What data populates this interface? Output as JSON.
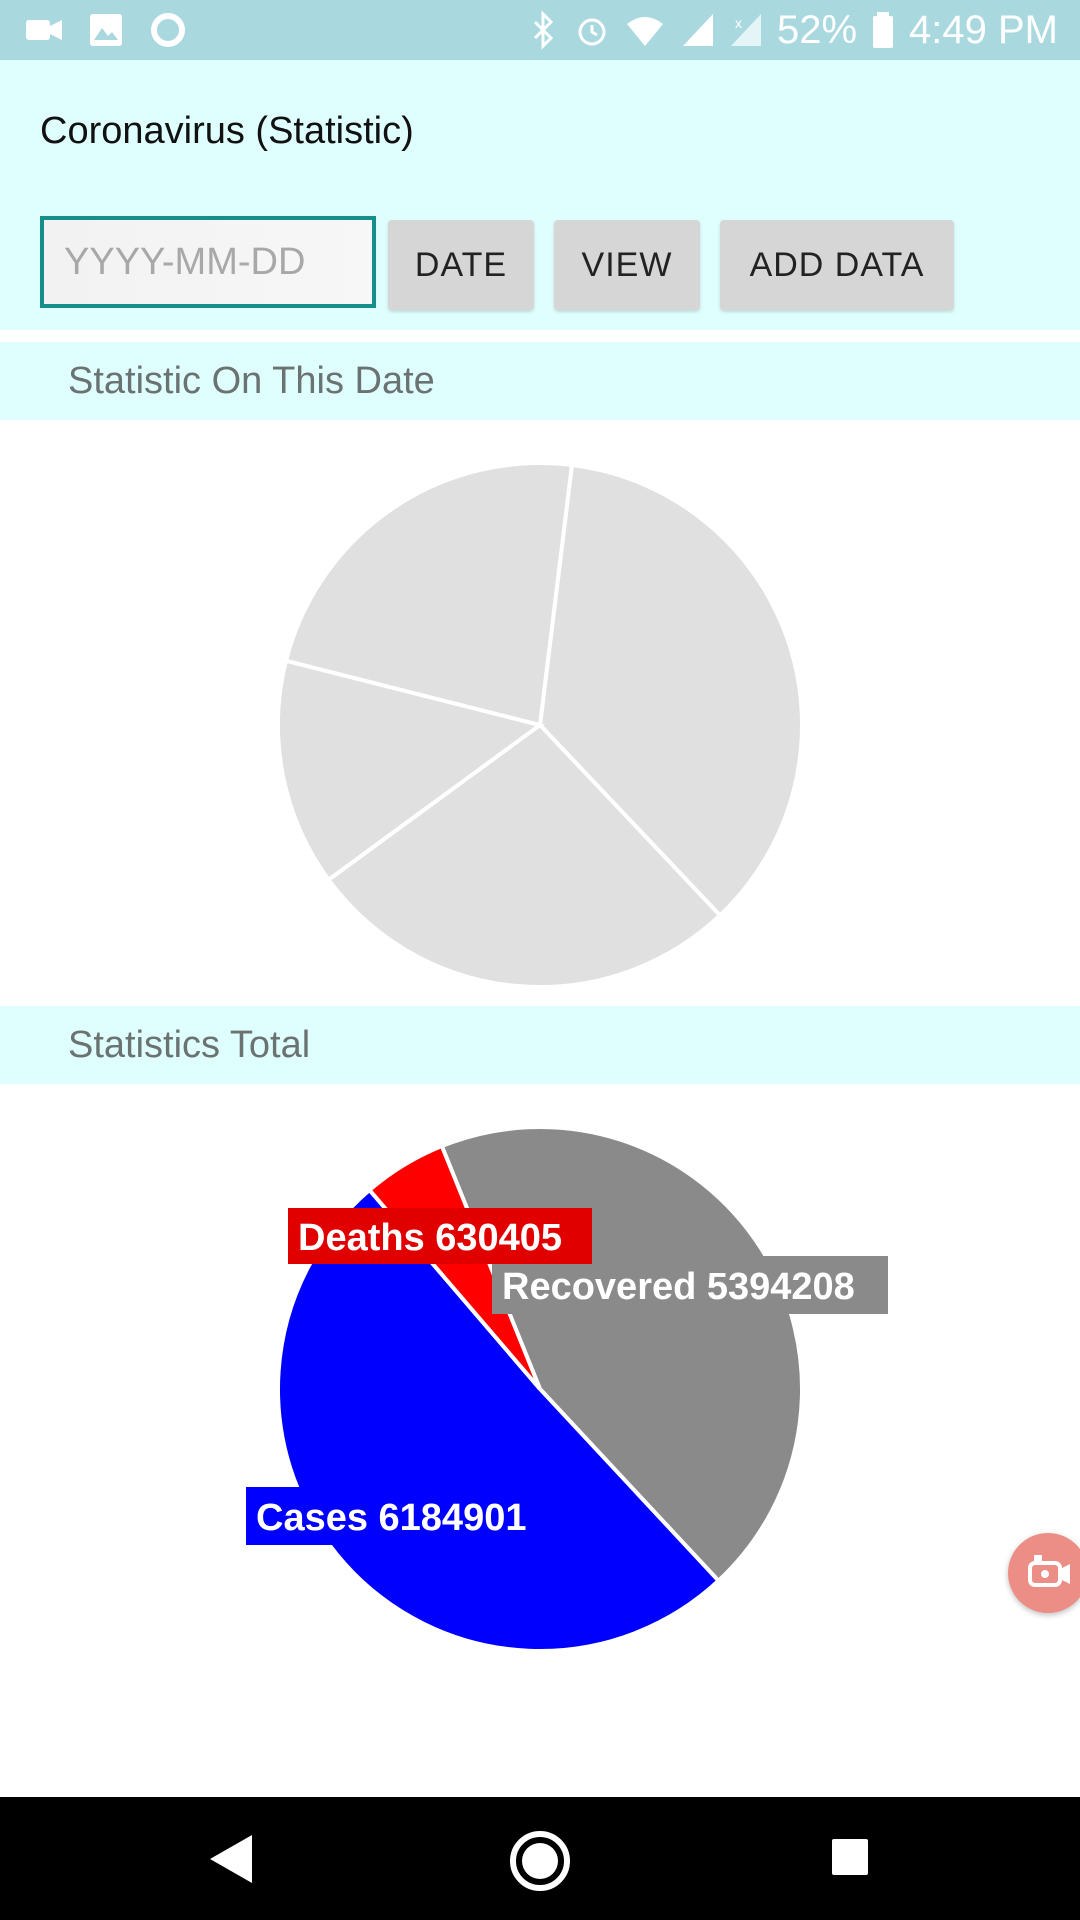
{
  "status_bar": {
    "battery": "52%",
    "time": "4:49 PM",
    "icons": [
      "video-icon",
      "image-icon",
      "circle-icon",
      "bluetooth-icon",
      "alarm-icon",
      "wifi-icon",
      "signal-icon",
      "signal-x-icon",
      "battery-icon"
    ]
  },
  "header": {
    "title": "Coronavirus (Statistic)",
    "date_input": {
      "value": "",
      "placeholder": "YYYY-MM-DD"
    },
    "buttons": {
      "date": "DATE",
      "view": "VIEW",
      "add_data": "ADD DATA"
    }
  },
  "sections": {
    "on_date": "Statistic On This Date",
    "total": "Statistics Total"
  },
  "chart_data": [
    {
      "type": "pie",
      "title": "",
      "slices": [
        {
          "label": "",
          "value": 36,
          "color": "#e0e0e0"
        },
        {
          "label": "",
          "value": 27,
          "color": "#e0e0e0"
        },
        {
          "label": "",
          "value": 14,
          "color": "#e0e0e0"
        },
        {
          "label": "",
          "value": 23,
          "color": "#e0e0e0"
        }
      ],
      "note_empty": ""
    },
    {
      "type": "pie",
      "title": "",
      "slices": [
        {
          "label": "Recovered",
          "value": 5394208,
          "color": "#8a8a8a"
        },
        {
          "label": "Cases",
          "value": 6184901,
          "color": "#0000ff"
        },
        {
          "label": "Deaths",
          "value": 630405,
          "color": "#ff0000"
        }
      ],
      "slice_labels": [
        {
          "text": "Recovered 5394208",
          "bg": "#8a8a8a"
        },
        {
          "text": "Cases  6184901",
          "bg": "#0000ff"
        },
        {
          "text": "Deaths 630405",
          "bg": "#e00000"
        }
      ]
    }
  ],
  "navigation": {
    "back": "back-icon",
    "home": "home-icon",
    "recents": "recents-icon"
  },
  "colors": {
    "status_bar": "#a9d9df",
    "header_bg": "#dffffe",
    "accent": "#168f8a"
  }
}
